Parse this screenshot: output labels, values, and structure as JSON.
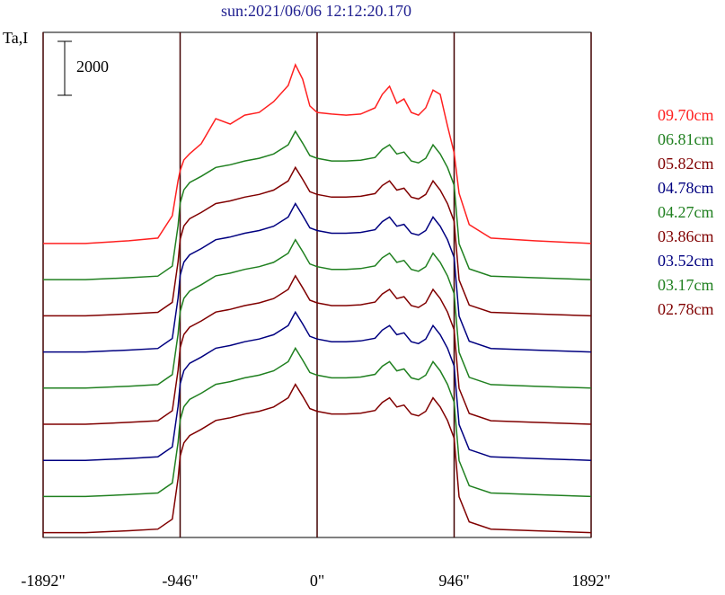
{
  "chart_data": {
    "type": "line",
    "title": "sun:2021/06/06 12:12:20.170",
    "y_label": "Ta,I",
    "scale_bar": 2000,
    "x": [
      -1892,
      -1600,
      -1300,
      -1100,
      -1000,
      -960,
      -946,
      -920,
      -880,
      -800,
      -700,
      -600,
      -500,
      -400,
      -300,
      -200,
      -150,
      -100,
      -50,
      0,
      100,
      200,
      300,
      400,
      450,
      500,
      550,
      600,
      650,
      700,
      750,
      800,
      850,
      900,
      946,
      980,
      1050,
      1200,
      1500,
      1892
    ],
    "xlim": [
      -1892,
      1892
    ],
    "xticks": [
      {
        "value": -1892,
        "label": "-1892\""
      },
      {
        "value": -946,
        "label": "-946\""
      },
      {
        "value": 0,
        "label": "0\""
      },
      {
        "value": 946,
        "label": "946\""
      },
      {
        "value": 1892,
        "label": "1892\""
      }
    ],
    "ylim": [
      0,
      18730
    ],
    "series": [
      {
        "name": "09.70cm",
        "color": "#ff2020",
        "values": [
          10900,
          10900,
          11000,
          11100,
          11930,
          13230,
          13600,
          14000,
          14230,
          14600,
          15530,
          15330,
          15660,
          15760,
          16160,
          16760,
          17530,
          16990,
          16000,
          15760,
          15700,
          15660,
          15700,
          15930,
          16430,
          16730,
          16100,
          16260,
          15760,
          15660,
          15930,
          16590,
          16430,
          15260,
          14260,
          12760,
          11600,
          11100,
          11000,
          10900
        ]
      },
      {
        "name": "06.81cm",
        "color": "#208020",
        "values": [
          9560,
          9560,
          9630,
          9690,
          10060,
          11560,
          12390,
          12890,
          13160,
          13390,
          13720,
          13820,
          13960,
          14060,
          14220,
          14560,
          15060,
          14620,
          14160,
          14060,
          13960,
          13960,
          13990,
          14090,
          14390,
          14560,
          14220,
          14290,
          13960,
          13890,
          14060,
          14560,
          14220,
          13720,
          13060,
          10890,
          9960,
          9690,
          9630,
          9560
        ]
      },
      {
        "name": "05.82cm",
        "color": "#800000",
        "values": [
          8220,
          8220,
          8290,
          8350,
          8720,
          10220,
          11050,
          11550,
          11820,
          12050,
          12380,
          12480,
          12620,
          12720,
          12880,
          13220,
          13720,
          13280,
          12820,
          12720,
          12620,
          12620,
          12650,
          12750,
          13050,
          13220,
          12880,
          12950,
          12620,
          12550,
          12720,
          13220,
          12880,
          12380,
          11720,
          9550,
          8620,
          8350,
          8290,
          8220
        ]
      },
      {
        "name": "04.78cm",
        "color": "#000080",
        "values": [
          6880,
          6880,
          6950,
          7010,
          7380,
          8880,
          9710,
          10210,
          10480,
          10710,
          11040,
          11140,
          11280,
          11380,
          11540,
          11880,
          12380,
          11940,
          11480,
          11380,
          11280,
          11280,
          11310,
          11410,
          11710,
          11880,
          11540,
          11610,
          11280,
          11210,
          11380,
          11880,
          11540,
          11040,
          10380,
          8210,
          7280,
          7010,
          6950,
          6880
        ]
      },
      {
        "name": "04.27cm",
        "color": "#208020",
        "values": [
          5540,
          5540,
          5610,
          5670,
          6040,
          7540,
          8370,
          8870,
          9140,
          9370,
          9700,
          9800,
          9940,
          10040,
          10200,
          10540,
          11040,
          10600,
          10140,
          10040,
          9940,
          9940,
          9970,
          10070,
          10370,
          10540,
          10200,
          10270,
          9940,
          9870,
          10040,
          10540,
          10200,
          9700,
          9040,
          6870,
          5940,
          5670,
          5610,
          5540
        ]
      },
      {
        "name": "03.86cm",
        "color": "#800000",
        "values": [
          4200,
          4200,
          4270,
          4330,
          4700,
          6200,
          7030,
          7530,
          7800,
          8030,
          8360,
          8460,
          8600,
          8700,
          8860,
          9200,
          9700,
          9260,
          8800,
          8700,
          8600,
          8600,
          8630,
          8730,
          9030,
          9200,
          8860,
          8930,
          8600,
          8530,
          8700,
          9200,
          8860,
          8360,
          7700,
          5530,
          4600,
          4330,
          4270,
          4200
        ]
      },
      {
        "name": "03.52cm",
        "color": "#000080",
        "values": [
          2860,
          2860,
          2930,
          2990,
          3360,
          4860,
          5690,
          6190,
          6460,
          6690,
          7020,
          7120,
          7260,
          7360,
          7520,
          7860,
          8360,
          7920,
          7460,
          7360,
          7260,
          7260,
          7290,
          7390,
          7690,
          7860,
          7520,
          7590,
          7260,
          7190,
          7360,
          7860,
          7520,
          7020,
          6360,
          4190,
          3260,
          2990,
          2930,
          2860
        ]
      },
      {
        "name": "03.17cm",
        "color": "#208020",
        "values": [
          1520,
          1520,
          1590,
          1650,
          2020,
          3520,
          4350,
          4850,
          5120,
          5350,
          5680,
          5780,
          5920,
          6020,
          6180,
          6520,
          7020,
          6580,
          6120,
          6020,
          5920,
          5920,
          5950,
          6050,
          6350,
          6520,
          6180,
          6250,
          5920,
          5850,
          6020,
          6520,
          6180,
          5680,
          5020,
          2850,
          1920,
          1650,
          1590,
          1520
        ]
      },
      {
        "name": "02.78cm",
        "color": "#800000",
        "values": [
          180,
          180,
          250,
          310,
          680,
          2180,
          3010,
          3510,
          3780,
          4010,
          4340,
          4440,
          4580,
          4680,
          4840,
          5180,
          5680,
          5240,
          4780,
          4680,
          4580,
          4580,
          4610,
          4710,
          5010,
          5180,
          4840,
          4910,
          4580,
          4510,
          4680,
          5180,
          4840,
          4340,
          3680,
          1510,
          580,
          310,
          250,
          180
        ]
      }
    ]
  }
}
